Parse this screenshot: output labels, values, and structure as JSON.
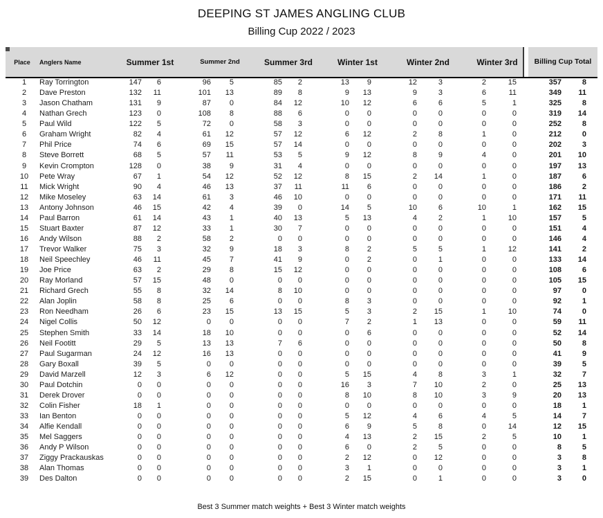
{
  "title": "DEEPING ST JAMES ANGLING CLUB",
  "subtitle": "Billing Cup 2022 / 2023",
  "footer_note": "Best 3 Summer match weights + Best 3 Winter match weights",
  "colors": {
    "header_background": "#d9d9d9",
    "header_rule": "#000000",
    "text": "#1a1a1a"
  },
  "table": {
    "header": {
      "place": "Place",
      "name": "Anglers Name",
      "groups": [
        "Summer 1st",
        "Summer 2nd",
        "Summer 3rd",
        "Winter 1st",
        "Winter 2nd",
        "Winter 3rd"
      ],
      "total": "Billing Cup Total"
    },
    "rows": [
      [
        1,
        "Ray Torrington",
        147,
        6,
        96,
        5,
        85,
        2,
        13,
        9,
        12,
        3,
        2,
        15,
        357,
        8
      ],
      [
        2,
        "Dave Preston",
        132,
        11,
        101,
        13,
        89,
        8,
        9,
        13,
        9,
        3,
        6,
        11,
        349,
        11
      ],
      [
        3,
        "Jason Chatham",
        131,
        9,
        87,
        0,
        84,
        12,
        10,
        12,
        6,
        6,
        5,
        1,
        325,
        8
      ],
      [
        4,
        "Nathan Grech",
        123,
        0,
        108,
        8,
        88,
        6,
        0,
        0,
        0,
        0,
        0,
        0,
        319,
        14
      ],
      [
        5,
        "Paul Wild",
        122,
        5,
        72,
        0,
        58,
        3,
        0,
        0,
        0,
        0,
        0,
        0,
        252,
        8
      ],
      [
        6,
        "Graham Wright",
        82,
        4,
        61,
        12,
        57,
        12,
        6,
        12,
        2,
        8,
        1,
        0,
        212,
        0
      ],
      [
        7,
        "Phil Price",
        74,
        6,
        69,
        15,
        57,
        14,
        0,
        0,
        0,
        0,
        0,
        0,
        202,
        3
      ],
      [
        8,
        "Steve Borrett",
        68,
        5,
        57,
        11,
        53,
        5,
        9,
        12,
        8,
        9,
        4,
        0,
        201,
        10
      ],
      [
        9,
        "Kevin Crompton",
        128,
        0,
        38,
        9,
        31,
        4,
        0,
        0,
        0,
        0,
        0,
        0,
        197,
        13
      ],
      [
        10,
        "Pete Wray",
        67,
        1,
        54,
        12,
        52,
        12,
        8,
        15,
        2,
        14,
        1,
        0,
        187,
        6
      ],
      [
        11,
        "Mick Wright",
        90,
        4,
        46,
        13,
        37,
        11,
        11,
        6,
        0,
        0,
        0,
        0,
        186,
        2
      ],
      [
        12,
        "Mike Moseley",
        63,
        14,
        61,
        3,
        46,
        10,
        0,
        0,
        0,
        0,
        0,
        0,
        171,
        11
      ],
      [
        13,
        "Antony Johnson",
        46,
        15,
        42,
        4,
        39,
        0,
        14,
        5,
        10,
        6,
        10,
        1,
        162,
        15
      ],
      [
        14,
        "Paul Barron",
        61,
        14,
        43,
        1,
        40,
        13,
        5,
        13,
        4,
        2,
        1,
        10,
        157,
        5
      ],
      [
        15,
        "Stuart Baxter",
        87,
        12,
        33,
        1,
        30,
        7,
        0,
        0,
        0,
        0,
        0,
        0,
        151,
        4
      ],
      [
        16,
        "Andy Wilson",
        88,
        2,
        58,
        2,
        0,
        0,
        0,
        0,
        0,
        0,
        0,
        0,
        146,
        4
      ],
      [
        17,
        "Trevor Walker",
        75,
        3,
        32,
        9,
        18,
        3,
        8,
        2,
        5,
        5,
        1,
        12,
        141,
        2
      ],
      [
        18,
        "Neil Speechley",
        46,
        11,
        45,
        7,
        41,
        9,
        0,
        2,
        0,
        1,
        0,
        0,
        133,
        14
      ],
      [
        19,
        "Joe Price",
        63,
        2,
        29,
        8,
        15,
        12,
        0,
        0,
        0,
        0,
        0,
        0,
        108,
        6
      ],
      [
        20,
        "Ray Morland",
        57,
        15,
        48,
        0,
        0,
        0,
        0,
        0,
        0,
        0,
        0,
        0,
        105,
        15
      ],
      [
        21,
        "Richard Grech",
        55,
        8,
        32,
        14,
        8,
        10,
        0,
        0,
        0,
        0,
        0,
        0,
        97,
        0
      ],
      [
        22,
        "Alan Joplin",
        58,
        8,
        25,
        6,
        0,
        0,
        8,
        3,
        0,
        0,
        0,
        0,
        92,
        1
      ],
      [
        23,
        "Ron Needham",
        26,
        6,
        23,
        15,
        13,
        15,
        5,
        3,
        2,
        15,
        1,
        10,
        74,
        0
      ],
      [
        24,
        "Nigel Collis",
        50,
        12,
        0,
        0,
        0,
        0,
        7,
        2,
        1,
        13,
        0,
        0,
        59,
        11
      ],
      [
        25,
        "Stephen Smith",
        33,
        14,
        18,
        10,
        0,
        0,
        0,
        6,
        0,
        0,
        0,
        0,
        52,
        14
      ],
      [
        26,
        "Neil Footitt",
        29,
        5,
        13,
        13,
        7,
        6,
        0,
        0,
        0,
        0,
        0,
        0,
        50,
        8
      ],
      [
        27,
        "Paul Sugarman",
        24,
        12,
        16,
        13,
        0,
        0,
        0,
        0,
        0,
        0,
        0,
        0,
        41,
        9
      ],
      [
        28,
        "Gary Boxall",
        39,
        5,
        0,
        0,
        0,
        0,
        0,
        0,
        0,
        0,
        0,
        0,
        39,
        5
      ],
      [
        29,
        "David Marzell",
        12,
        3,
        6,
        12,
        0,
        0,
        5,
        15,
        4,
        8,
        3,
        1,
        32,
        7
      ],
      [
        30,
        "Paul Dotchin",
        0,
        0,
        0,
        0,
        0,
        0,
        16,
        3,
        7,
        10,
        2,
        0,
        25,
        13
      ],
      [
        31,
        "Derek Drover",
        0,
        0,
        0,
        0,
        0,
        0,
        8,
        10,
        8,
        10,
        3,
        9,
        20,
        13
      ],
      [
        32,
        "Colin Fisher",
        18,
        1,
        0,
        0,
        0,
        0,
        0,
        0,
        0,
        0,
        0,
        0,
        18,
        1
      ],
      [
        33,
        "Ian Benton",
        0,
        0,
        0,
        0,
        0,
        0,
        5,
        12,
        4,
        6,
        4,
        5,
        14,
        7
      ],
      [
        34,
        "Alfie Kendall",
        0,
        0,
        0,
        0,
        0,
        0,
        6,
        9,
        5,
        8,
        0,
        14,
        12,
        15
      ],
      [
        35,
        "Mel Saggers",
        0,
        0,
        0,
        0,
        0,
        0,
        4,
        13,
        2,
        15,
        2,
        5,
        10,
        1
      ],
      [
        36,
        "Andy P Wilson",
        0,
        0,
        0,
        0,
        0,
        0,
        6,
        0,
        2,
        5,
        0,
        0,
        8,
        5
      ],
      [
        37,
        "Ziggy Prackauskas",
        0,
        0,
        0,
        0,
        0,
        0,
        2,
        12,
        0,
        12,
        0,
        0,
        3,
        8
      ],
      [
        38,
        "Alan Thomas",
        0,
        0,
        0,
        0,
        0,
        0,
        3,
        1,
        0,
        0,
        0,
        0,
        3,
        1
      ],
      [
        39,
        "Des Dalton",
        0,
        0,
        0,
        0,
        0,
        0,
        2,
        15,
        0,
        1,
        0,
        0,
        3,
        0
      ]
    ]
  }
}
